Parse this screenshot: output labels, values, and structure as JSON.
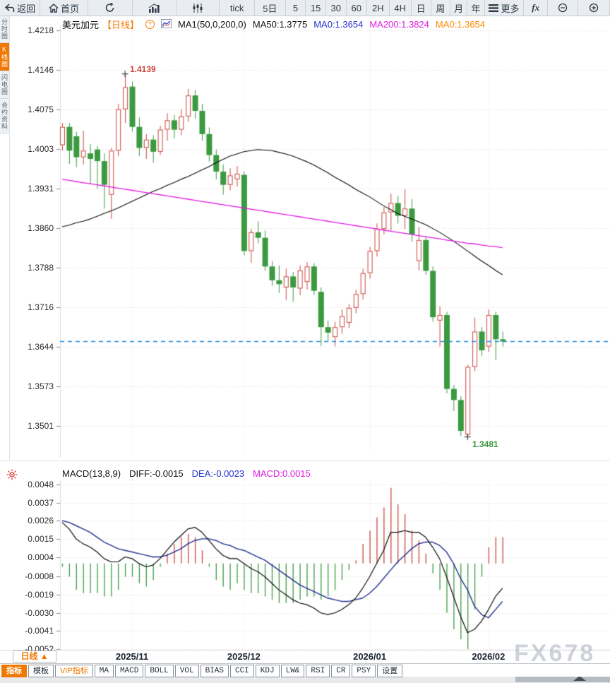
{
  "toolbar": {
    "items": [
      {
        "id": "back",
        "label": "返回",
        "icon": "back-arrow-icon"
      },
      {
        "id": "home",
        "label": "首页",
        "icon": "home-icon"
      },
      {
        "id": "refresh",
        "icon": "refresh-icon"
      },
      {
        "id": "bar-chart",
        "icon": "bar-chart-icon"
      },
      {
        "id": "candle-chart",
        "icon": "candlestick-icon"
      },
      {
        "id": "tick",
        "label": "tick"
      },
      {
        "id": "5d",
        "label": "5日"
      },
      {
        "id": "m5",
        "label": "5"
      },
      {
        "id": "m15",
        "label": "15"
      },
      {
        "id": "m30",
        "label": "30"
      },
      {
        "id": "m60",
        "label": "60"
      },
      {
        "id": "h2",
        "label": "2H"
      },
      {
        "id": "h4",
        "label": "4H"
      },
      {
        "id": "day",
        "label": "日"
      },
      {
        "id": "week",
        "label": "周"
      },
      {
        "id": "month",
        "label": "月"
      },
      {
        "id": "year",
        "label": "年"
      },
      {
        "id": "more",
        "label": "更多",
        "icon": "menu-icon"
      },
      {
        "id": "fx",
        "label": "fx"
      },
      {
        "id": "zoom-out",
        "icon": "zoom-out-icon"
      },
      {
        "id": "zoom-in",
        "icon": "zoom-in-icon"
      }
    ]
  },
  "sidebar": {
    "items": [
      {
        "id": "time-share",
        "label": "分时图",
        "active": false
      },
      {
        "id": "kline",
        "label": "K线图",
        "active": true
      },
      {
        "id": "lightning",
        "label": "闪电图",
        "active": false
      },
      {
        "id": "contract-info",
        "label": "合约资料",
        "active": false
      }
    ]
  },
  "main_chart": {
    "symbol": "美元加元",
    "period": "【日线】",
    "ma_group": "MA1(50,0,200,0)",
    "ma50_text": "MA50:1.3775",
    "ma0_blue_text": "MA0:1.3654",
    "ma200_text": "MA200:1.3824",
    "ma0_orange_text": "MA0:1.3654"
  },
  "macd_panel": {
    "params": "MACD(13,8,9)",
    "diff_text": "DIFF:-0.0015",
    "dea_text": "DEA:-0.0023",
    "macd_text": "MACD:0.0015"
  },
  "bottom": {
    "period_button": "日线 ▲",
    "x_labels": [
      "2025/11",
      "2025/12",
      "2026/01",
      "2026/02"
    ],
    "tabs": [
      {
        "label": "指标",
        "state": "active"
      },
      {
        "label": "模板",
        "state": "normal"
      },
      {
        "label": "VIP指标",
        "state": "vip"
      },
      {
        "label": "MA",
        "state": "normal"
      },
      {
        "label": "MACD",
        "state": "normal"
      },
      {
        "label": "BOLL",
        "state": "normal"
      },
      {
        "label": "VOL",
        "state": "normal"
      },
      {
        "label": "BIAS",
        "state": "normal"
      },
      {
        "label": "CCI",
        "state": "normal"
      },
      {
        "label": "KDJ",
        "state": "normal"
      },
      {
        "label": "LW&",
        "state": "normal"
      },
      {
        "label": "RSI",
        "state": "normal"
      },
      {
        "label": "CR",
        "state": "normal"
      },
      {
        "label": "PSY",
        "state": "normal"
      },
      {
        "label": "设置",
        "state": "normal"
      }
    ],
    "watermark": "FX678"
  },
  "colors": {
    "accent_orange": "#f07800",
    "up_red": "#c9463d",
    "down_green": "#3b9a3f",
    "ma50_black": "#0a0a0a",
    "ma200_magenta": "#e21ae2",
    "diff_black": "#0a0a0a",
    "dea_blue": "#202f8f",
    "last_price_blue": "#1f8fe0",
    "grid": "#ead9d9",
    "grid_vertical": "#e6e4e2"
  },
  "chart_data": [
    {
      "type": "candlestick",
      "title": "美元加元 日线",
      "legend_position": "top-left",
      "grid": "dotted",
      "y_ticks": [
        1.4218,
        1.4146,
        1.4075,
        1.4003,
        1.3931,
        1.386,
        1.3788,
        1.3716,
        1.3644,
        1.3573,
        1.3501
      ],
      "ylim": [
        1.3475,
        1.4245
      ],
      "x_tick_labels": [
        "2025/11",
        "2025/12",
        "2026/01",
        "2026/02"
      ],
      "x_tick_indices": [
        10,
        26,
        44,
        61
      ],
      "last_price": 1.3654,
      "high_annotation": {
        "index": 9,
        "price": 1.4139,
        "label": "1.4139"
      },
      "low_annotation": {
        "index": 58,
        "price": 1.3481,
        "label": "1.3481"
      },
      "candles": [
        [
          1.401,
          1.405,
          1.4,
          1.4043
        ],
        [
          1.4043,
          1.405,
          1.3976,
          1.4
        ],
        [
          1.4026,
          1.4034,
          1.397,
          1.3988
        ],
        [
          1.3988,
          1.4036,
          1.3975,
          1.4
        ],
        [
          1.3995,
          1.4012,
          1.394,
          1.3985
        ],
        [
          1.4002,
          1.4008,
          1.3931,
          1.3981
        ],
        [
          1.3981,
          1.3995,
          1.3895,
          1.3938
        ],
        [
          1.392,
          1.4005,
          1.3876,
          1.4
        ],
        [
          1.4,
          1.4085,
          1.399,
          1.4075
        ],
        [
          1.4075,
          1.4139,
          1.405,
          1.4115
        ],
        [
          1.4116,
          1.4125,
          1.4035,
          1.4043
        ],
        [
          1.4043,
          1.406,
          1.399,
          1.4005
        ],
        [
          1.4005,
          1.403,
          1.3985,
          1.402
        ],
        [
          1.402,
          1.4028,
          1.3978,
          1.3998
        ],
        [
          1.3998,
          1.4045,
          1.3992,
          1.4038
        ],
        [
          1.4038,
          1.4068,
          1.4018,
          1.4055
        ],
        [
          1.4055,
          1.4065,
          1.4022,
          1.4038
        ],
        [
          1.4038,
          1.4075,
          1.4028,
          1.4062
        ],
        [
          1.4062,
          1.4112,
          1.4052,
          1.41
        ],
        [
          1.41,
          1.411,
          1.4058,
          1.4072
        ],
        [
          1.4072,
          1.4085,
          1.4018,
          1.403
        ],
        [
          1.403,
          1.4042,
          1.398,
          1.3992
        ],
        [
          1.3992,
          1.4002,
          1.3948,
          1.3962
        ],
        [
          1.3962,
          1.3975,
          1.392,
          1.3938
        ],
        [
          1.3938,
          1.3968,
          1.3928,
          1.3955
        ],
        [
          1.3948,
          1.3972,
          1.3935,
          1.3958
        ],
        [
          1.3956,
          1.3962,
          1.381,
          1.3818
        ],
        [
          1.3818,
          1.3858,
          1.3797,
          1.3852
        ],
        [
          1.3852,
          1.3872,
          1.3832,
          1.3842
        ],
        [
          1.3842,
          1.3855,
          1.3782,
          1.379
        ],
        [
          1.379,
          1.38,
          1.3755,
          1.3765
        ],
        [
          1.3765,
          1.3792,
          1.3742,
          1.3758
        ],
        [
          1.3752,
          1.3786,
          1.3729,
          1.3772
        ],
        [
          1.3772,
          1.378,
          1.3726,
          1.3752
        ],
        [
          1.375,
          1.3792,
          1.3738,
          1.3783
        ],
        [
          1.3762,
          1.3798,
          1.3748,
          1.379
        ],
        [
          1.379,
          1.3796,
          1.3738,
          1.3746
        ],
        [
          1.3744,
          1.3752,
          1.3646,
          1.368
        ],
        [
          1.368,
          1.3692,
          1.3655,
          1.367
        ],
        [
          1.3662,
          1.369,
          1.3645,
          1.368
        ],
        [
          1.368,
          1.3712,
          1.3668,
          1.37
        ],
        [
          1.3688,
          1.3722,
          1.3678,
          1.3715
        ],
        [
          1.3715,
          1.3748,
          1.3705,
          1.374
        ],
        [
          1.374,
          1.3786,
          1.373,
          1.3778
        ],
        [
          1.3778,
          1.3825,
          1.3768,
          1.3818
        ],
        [
          1.3818,
          1.3868,
          1.3808,
          1.3858
        ],
        [
          1.3858,
          1.3898,
          1.3848,
          1.3888
        ],
        [
          1.3888,
          1.3922,
          1.3855,
          1.3905
        ],
        [
          1.3905,
          1.3918,
          1.3868,
          1.3882
        ],
        [
          1.3882,
          1.393,
          1.3858,
          1.3895
        ],
        [
          1.3895,
          1.3912,
          1.3835,
          1.3848
        ],
        [
          1.38,
          1.3862,
          1.3783,
          1.3838
        ],
        [
          1.3838,
          1.3845,
          1.3775,
          1.3782
        ],
        [
          1.3782,
          1.379,
          1.369,
          1.3698
        ],
        [
          1.3692,
          1.3718,
          1.3645,
          1.3702
        ],
        [
          1.3702,
          1.3708,
          1.356,
          1.3568
        ],
        [
          1.3568,
          1.3575,
          1.3528,
          1.3548
        ],
        [
          1.3548,
          1.3555,
          1.3483,
          1.3492
        ],
        [
          1.3485,
          1.3612,
          1.3481,
          1.3608
        ],
        [
          1.3608,
          1.3697,
          1.36,
          1.3672
        ],
        [
          1.3672,
          1.368,
          1.3628,
          1.3638
        ],
        [
          1.3645,
          1.3712,
          1.3635,
          1.3702
        ],
        [
          1.3702,
          1.3708,
          1.362,
          1.3658
        ],
        [
          1.3658,
          1.3672,
          1.3645,
          1.3654
        ]
      ],
      "ma50": [
        1.3862,
        1.3865,
        1.3869,
        1.3872,
        1.3876,
        1.3881,
        1.3886,
        1.3891,
        1.3896,
        1.3902,
        1.3908,
        1.3914,
        1.392,
        1.3926,
        1.3931,
        1.3937,
        1.3942,
        1.3948,
        1.3953,
        1.3959,
        1.3965,
        1.3971,
        1.3978,
        1.3984,
        1.399,
        1.3994,
        1.3998,
        1.4,
        1.4002,
        1.4001,
        1.4,
        1.3997,
        1.3994,
        1.399,
        1.3985,
        1.398,
        1.3974,
        1.3967,
        1.396,
        1.3952,
        1.3945,
        1.3938,
        1.393,
        1.3923,
        1.3916,
        1.3908,
        1.39,
        1.3893,
        1.3886,
        1.3881,
        1.3876,
        1.3871,
        1.3866,
        1.3859,
        1.3852,
        1.3844,
        1.3836,
        1.3827,
        1.3818,
        1.3809,
        1.38,
        1.3792,
        1.3783,
        1.3775
      ],
      "ma200": [
        1.3948,
        1.3946,
        1.3944,
        1.3942,
        1.394,
        1.3938,
        1.3936,
        1.3934,
        1.3932,
        1.393,
        1.3928,
        1.3926,
        1.3924,
        1.3922,
        1.392,
        1.3918,
        1.3916,
        1.3914,
        1.3912,
        1.391,
        1.3908,
        1.3906,
        1.3904,
        1.3902,
        1.39,
        1.3898,
        1.3896,
        1.3894,
        1.3892,
        1.389,
        1.3888,
        1.3886,
        1.3884,
        1.3882,
        1.388,
        1.3878,
        1.3876,
        1.3874,
        1.3872,
        1.387,
        1.3868,
        1.3866,
        1.3864,
        1.3862,
        1.386,
        1.3858,
        1.3856,
        1.3854,
        1.3852,
        1.385,
        1.3848,
        1.3846,
        1.3844,
        1.3842,
        1.384,
        1.3838,
        1.3836,
        1.3834,
        1.3832,
        1.3831,
        1.3829,
        1.3827,
        1.3826,
        1.3824
      ]
    },
    {
      "type": "macd",
      "title": "MACD(13,8,9)",
      "y_ticks": [
        0.0048,
        0.0037,
        0.0026,
        0.0015,
        0.0004,
        -0.0008,
        -0.0019,
        -0.003,
        -0.0041,
        -0.0052
      ],
      "ylim": [
        -0.0057,
        0.0053
      ],
      "histogram_rule": "2*(diff-dea)",
      "diff": [
        0.0025,
        0.0021,
        0.0015,
        0.0012,
        0.001,
        0.0007,
        0.0003,
        0.0001,
        0.0001,
        0.0004,
        0.0003,
        0.0,
        -0.0002,
        -0.0001,
        0.0003,
        0.0008,
        0.0013,
        0.0017,
        0.0021,
        0.0022,
        0.0019,
        0.0014,
        0.0009,
        0.0005,
        0.0003,
        0.0003,
        0.0,
        -0.0003,
        -0.0005,
        -0.0008,
        -0.0012,
        -0.0016,
        -0.0019,
        -0.0022,
        -0.0024,
        -0.0025,
        -0.0027,
        -0.003,
        -0.0031,
        -0.003,
        -0.0028,
        -0.0025,
        -0.0021,
        -0.0015,
        -0.0008,
        0.0,
        0.0008,
        0.0019,
        0.0019,
        0.002,
        0.0019,
        0.0019,
        0.0016,
        0.001,
        0.0003,
        -0.0008,
        -0.002,
        -0.0032,
        -0.0042,
        -0.004,
        -0.0035,
        -0.0028,
        -0.002,
        -0.0015
      ],
      "dea": [
        0.0026,
        0.0025,
        0.0023,
        0.0021,
        0.0019,
        0.0016,
        0.0013,
        0.0011,
        0.0009,
        0.0008,
        0.0007,
        0.0006,
        0.0005,
        0.0004,
        0.0004,
        0.0005,
        0.0007,
        0.0009,
        0.0012,
        0.0014,
        0.0015,
        0.0015,
        0.0014,
        0.0012,
        0.0011,
        0.0009,
        0.0008,
        0.0006,
        0.0004,
        0.0002,
        -0.0001,
        -0.0004,
        -0.0007,
        -0.001,
        -0.0013,
        -0.0015,
        -0.0017,
        -0.0019,
        -0.0021,
        -0.0022,
        -0.0023,
        -0.0023,
        -0.0022,
        -0.0021,
        -0.0018,
        -0.0014,
        -0.0009,
        -0.0004,
        0.0001,
        0.0005,
        0.0009,
        0.0012,
        0.0013,
        0.0013,
        0.0011,
        0.0007,
        0.0,
        -0.0009,
        -0.0016,
        -0.0026,
        -0.0031,
        -0.0033,
        -0.0028,
        -0.0023
      ]
    }
  ]
}
